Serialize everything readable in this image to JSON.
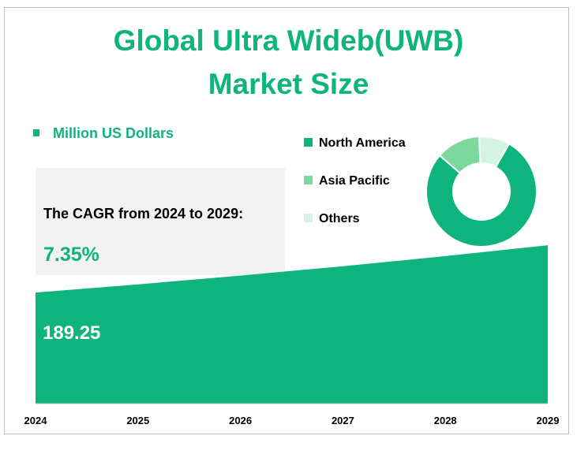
{
  "colors": {
    "primary": "#0fb37e",
    "asia": "#7dd89e",
    "others": "#d5f3e2",
    "cagr_bg": "#f2f2f2"
  },
  "title_line1": "Global Ultra Wideb(UWB)",
  "title_line2": "Market Size",
  "unit_label": "Million US Dollars",
  "cagr": {
    "label": "The CAGR from 2024 to 2029:",
    "value": "7.35%"
  },
  "start_value_label": "189.25",
  "chart_data": [
    {
      "type": "area",
      "x": [
        "2024",
        "2025",
        "2026",
        "2027",
        "2028",
        "2029"
      ],
      "values": [
        189.25,
        203.16,
        218.09,
        234.12,
        251.33,
        269.8
      ],
      "ylim": [
        0,
        270
      ],
      "grid": false
    },
    {
      "type": "pie",
      "donut": true,
      "legend_position": "left",
      "slices": [
        {
          "name": "North America",
          "value": 78
        },
        {
          "name": "Asia Pacific",
          "value": 13
        },
        {
          "name": "Others",
          "value": 9
        }
      ]
    }
  ]
}
